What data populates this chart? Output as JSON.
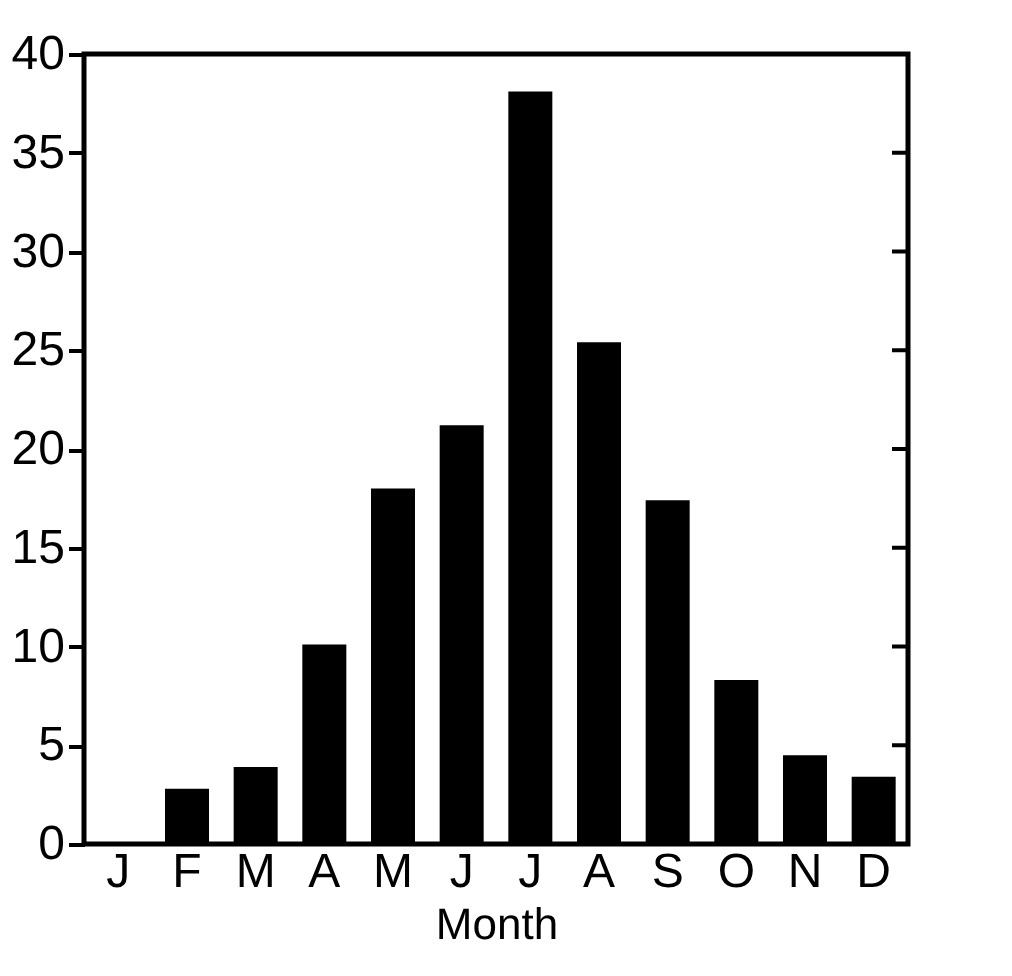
{
  "chart_data": {
    "type": "bar",
    "xlabel": "Month",
    "categories": [
      "J",
      "F",
      "M",
      "A",
      "M",
      "J",
      "J",
      "A",
      "S",
      "O",
      "N",
      "D"
    ],
    "values": [
      0,
      2.8,
      3.9,
      10.1,
      18.0,
      21.2,
      38.1,
      25.4,
      17.4,
      8.3,
      4.5,
      3.4
    ],
    "color": "#000000",
    "ylim": [
      0,
      40
    ],
    "yticks": [
      0,
      5,
      10,
      15,
      20,
      25,
      30,
      35,
      40
    ],
    "grid": false
  }
}
